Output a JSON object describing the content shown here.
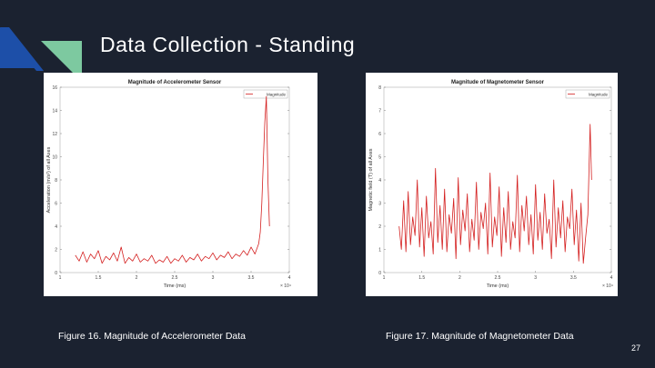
{
  "slide": {
    "title": "Data Collection - Standing",
    "page_number": "27",
    "colors": {
      "background": "#1b2230",
      "accent_blue": "#1d4fa8",
      "accent_green": "#7dc9a0",
      "trace": "#d42020"
    }
  },
  "figures": [
    {
      "caption": "Figure 16. Magnitude of Accelerometer Data",
      "chart_data": {
        "type": "line",
        "title": "Magnitude of Accelerometer Sensor",
        "xlabel": "Time (ms)",
        "ylabel": "Acceleration (m/s²) of all Axes",
        "x_multiplier_label": "× 10⁴",
        "xlim": [
          1,
          4
        ],
        "ylim": [
          0,
          16
        ],
        "xticks": [
          "1",
          "1.5",
          "2",
          "2.5",
          "3",
          "3.5",
          "4"
        ],
        "yticks": [
          "0",
          "2",
          "4",
          "6",
          "8",
          "10",
          "12",
          "14",
          "16"
        ],
        "legend": {
          "entries": [
            "Magnitude"
          ],
          "placement": "top-right"
        },
        "series": [
          {
            "name": "Magnitude",
            "color": "#d42020",
            "x": [
              1.2,
              1.25,
              1.3,
              1.35,
              1.4,
              1.45,
              1.5,
              1.55,
              1.6,
              1.65,
              1.7,
              1.75,
              1.8,
              1.85,
              1.9,
              1.95,
              2.0,
              2.05,
              2.1,
              2.15,
              2.2,
              2.25,
              2.3,
              2.35,
              2.4,
              2.45,
              2.5,
              2.55,
              2.6,
              2.65,
              2.7,
              2.75,
              2.8,
              2.85,
              2.9,
              2.95,
              3.0,
              3.05,
              3.1,
              3.15,
              3.2,
              3.25,
              3.3,
              3.35,
              3.4,
              3.45,
              3.5,
              3.55,
              3.6,
              3.62,
              3.64,
              3.66,
              3.68,
              3.7,
              3.72,
              3.74
            ],
            "y": [
              1.5,
              1.0,
              1.8,
              0.9,
              1.6,
              1.2,
              1.9,
              0.8,
              1.4,
              1.1,
              1.7,
              1.0,
              2.2,
              0.8,
              1.3,
              1.0,
              1.6,
              0.9,
              1.2,
              1.0,
              1.5,
              0.8,
              1.1,
              0.9,
              1.4,
              0.8,
              1.2,
              1.0,
              1.5,
              0.9,
              1.3,
              1.1,
              1.6,
              1.0,
              1.4,
              1.2,
              1.7,
              1.1,
              1.5,
              1.3,
              1.8,
              1.2,
              1.6,
              1.4,
              1.9,
              1.5,
              2.2,
              1.6,
              2.5,
              3.5,
              6.0,
              9.5,
              13.0,
              15.2,
              8.0,
              4.0
            ]
          }
        ]
      }
    },
    {
      "caption": "Figure 17. Magnitude of Magnetometer Data",
      "chart_data": {
        "type": "line",
        "title": "Magnitude of Magnetometer Sensor",
        "xlabel": "Time (ms)",
        "ylabel": "Magnetic field (T) of all Axes",
        "x_multiplier_label": "× 10⁴",
        "xlim": [
          1,
          4
        ],
        "ylim": [
          0,
          8
        ],
        "xticks": [
          "1",
          "1.5",
          "2",
          "2.5",
          "3",
          "3.5",
          "4"
        ],
        "yticks": [
          "0",
          "1",
          "2",
          "3",
          "4",
          "5",
          "6",
          "7",
          "8"
        ],
        "legend": {
          "entries": [
            "Magnitude"
          ],
          "placement": "top-right"
        },
        "series": [
          {
            "name": "Magnitude",
            "color": "#d42020",
            "x": [
              1.2,
              1.23,
              1.26,
              1.29,
              1.32,
              1.35,
              1.38,
              1.41,
              1.44,
              1.47,
              1.5,
              1.53,
              1.56,
              1.59,
              1.62,
              1.65,
              1.68,
              1.71,
              1.74,
              1.77,
              1.8,
              1.83,
              1.86,
              1.89,
              1.92,
              1.95,
              1.98,
              2.01,
              2.04,
              2.07,
              2.1,
              2.13,
              2.16,
              2.19,
              2.22,
              2.25,
              2.28,
              2.31,
              2.34,
              2.37,
              2.4,
              2.43,
              2.46,
              2.49,
              2.52,
              2.55,
              2.58,
              2.61,
              2.64,
              2.67,
              2.7,
              2.73,
              2.76,
              2.79,
              2.82,
              2.85,
              2.88,
              2.91,
              2.94,
              2.97,
              3.0,
              3.03,
              3.06,
              3.09,
              3.12,
              3.15,
              3.18,
              3.21,
              3.24,
              3.27,
              3.3,
              3.33,
              3.36,
              3.39,
              3.42,
              3.45,
              3.48,
              3.51,
              3.54,
              3.57,
              3.6,
              3.63,
              3.66,
              3.69,
              3.72,
              3.74
            ],
            "y": [
              2.0,
              1.0,
              3.1,
              0.9,
              3.5,
              1.2,
              2.4,
              1.6,
              4.0,
              1.1,
              2.8,
              0.7,
              3.3,
              1.5,
              2.2,
              0.8,
              4.5,
              1.3,
              2.9,
              1.0,
              3.6,
              0.9,
              2.5,
              1.7,
              3.2,
              0.6,
              4.1,
              1.2,
              2.7,
              1.8,
              3.4,
              0.9,
              2.3,
              1.4,
              3.9,
              1.0,
              2.6,
              1.9,
              3.0,
              0.8,
              4.3,
              1.1,
              2.4,
              1.6,
              3.7,
              0.7,
              2.8,
              1.3,
              3.5,
              1.0,
              2.2,
              1.5,
              4.2,
              0.9,
              2.9,
              1.8,
              3.3,
              1.2,
              2.5,
              0.8,
              3.8,
              1.4,
              2.6,
              1.0,
              3.4,
              1.7,
              2.3,
              0.6,
              4.0,
              1.1,
              2.8,
              1.5,
              3.1,
              0.9,
              2.4,
              1.9,
              3.6,
              1.2,
              2.7,
              0.5,
              3.0,
              0.4,
              1.5,
              2.5,
              6.4,
              4.0
            ]
          }
        ]
      }
    }
  ]
}
